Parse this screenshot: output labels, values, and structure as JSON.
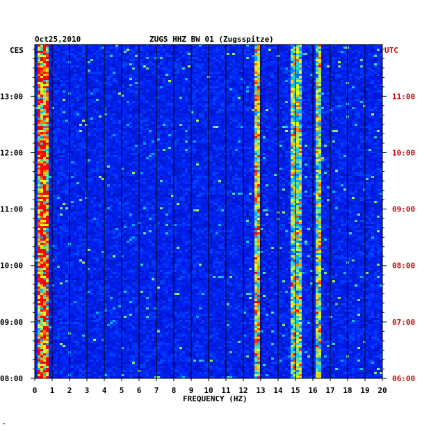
{
  "chart_data": {
    "type": "heatmap",
    "title": "ZUGS HHZ BW 01 (Zugsspitze)",
    "date": "Oct25,2010",
    "xlabel": "FREQUENCY (HZ)",
    "left_axis_label": "CES",
    "right_axis_label": "UTC",
    "xlim": [
      0,
      20
    ],
    "x_ticks": [
      "0",
      "1",
      "2",
      "3",
      "4",
      "5",
      "6",
      "7",
      "8",
      "9",
      "10",
      "11",
      "12",
      "13",
      "14",
      "15",
      "16",
      "17",
      "18",
      "19",
      "20"
    ],
    "left_time_ticks": [
      "13:00",
      "12:00",
      "11:00",
      "10:00",
      "09:00",
      "08:00"
    ],
    "right_time_ticks": [
      "11:00",
      "10:00",
      "09:00",
      "08:00",
      "07:00",
      "06:00"
    ],
    "time_range_local": [
      "08:00",
      "13:55"
    ],
    "colors": {
      "axis_text": "#000000",
      "utc_text": "#cc0000",
      "background_band": "#0a1a9a",
      "low": "#0000a0",
      "mid": "#00c8ff",
      "high": "#ffff00",
      "peak": "#ff0000"
    },
    "hot_bands_hz": [
      {
        "name": "low-frequency noise",
        "from": 0.2,
        "to": 0.8,
        "intensity": 0.9
      },
      {
        "name": "12.8 Hz line",
        "from": 12.7,
        "to": 13.0,
        "intensity": 0.7
      },
      {
        "name": "15 Hz events",
        "from": 14.8,
        "to": 15.4,
        "intensity": 0.6
      },
      {
        "name": "16.3 Hz events",
        "from": 16.1,
        "to": 16.5,
        "intensity": 0.6
      }
    ],
    "footnote": "\""
  }
}
